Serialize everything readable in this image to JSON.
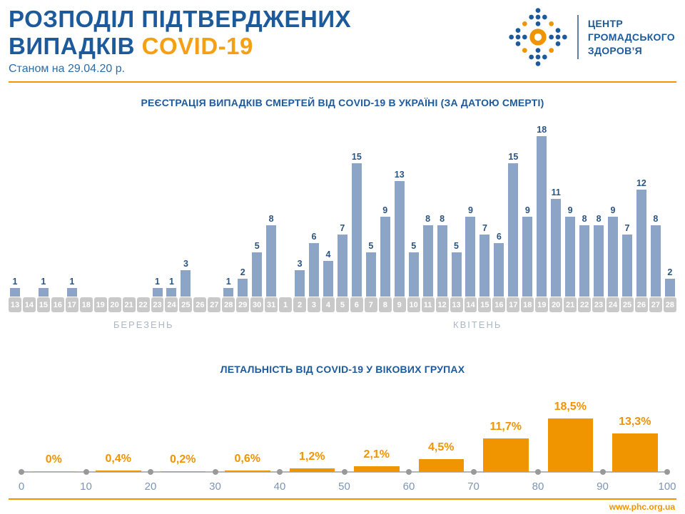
{
  "header": {
    "title_line1": "РОЗПОДІЛ ПІДТВЕРДЖЕНИХ",
    "title_line2": "ВИПАДКІВ",
    "title_accent": "COVID-19",
    "subtitle": "Станом на 29.04.20 р."
  },
  "logo": {
    "line1": "ЦЕНТР",
    "line2": "ГРОМАДСЬКОГО",
    "line3": "ЗДОРОВ’Я"
  },
  "footer": {
    "url": "www.phc.org.ua"
  },
  "colors": {
    "title_blue": "#1c5a9c",
    "accent_orange": "#f09400",
    "bar_blue": "#8ca4c5",
    "value_navy": "#2b5480",
    "date_strip_gray": "#c9c9c9",
    "month_label_gray": "#aab7c4",
    "axis_label_blue": "#7d95b3"
  },
  "chart_data": [
    {
      "type": "bar",
      "title": "РЕЄСТРАЦІЯ ВИПАДКІВ СМЕРТЕЙ ВІД COVID-19 В УКРАЇНІ (ЗА ДАТОЮ СМЕРТІ)",
      "ylim": [
        0,
        18
      ],
      "grid": false,
      "bar_color": "#8ca4c5",
      "months": [
        {
          "name": "БЕРЕЗЕНЬ",
          "days": [
            13,
            14,
            15,
            16,
            17,
            18,
            19,
            20,
            21,
            22,
            23,
            24,
            25,
            26,
            27,
            28,
            29,
            30,
            31
          ],
          "values": [
            1,
            0,
            1,
            0,
            1,
            0,
            0,
            0,
            0,
            0,
            1,
            1,
            3,
            0,
            0,
            1,
            2,
            5,
            8
          ]
        },
        {
          "name": "КВІТЕНЬ",
          "days": [
            1,
            2,
            3,
            4,
            5,
            6,
            7,
            8,
            9,
            10,
            11,
            12,
            13,
            14,
            15,
            16,
            17,
            18,
            19,
            20,
            21,
            22,
            23,
            24,
            25,
            26,
            27,
            28
          ],
          "values": [
            0,
            3,
            6,
            4,
            7,
            15,
            5,
            9,
            13,
            5,
            8,
            8,
            5,
            9,
            7,
            6,
            15,
            9,
            18,
            11,
            9,
            8,
            8,
            9,
            7,
            12,
            8,
            2
          ]
        }
      ]
    },
    {
      "type": "bar",
      "title": "ЛЕТАЛЬНІСТЬ ВІД COVID-19 У ВІКОВИХ ГРУПАХ",
      "xlim": [
        0,
        100
      ],
      "x_ticks": [
        "0",
        "10",
        "20",
        "30",
        "40",
        "50",
        "60",
        "70",
        "80",
        "90",
        "100"
      ],
      "bar_color": "#f09400",
      "bins": [
        {
          "range": "0-10",
          "label": "0%",
          "value": 0
        },
        {
          "range": "10-20",
          "label": "0,4%",
          "value": 0.4
        },
        {
          "range": "20-30",
          "label": "0,2%",
          "value": 0.2
        },
        {
          "range": "30-40",
          "label": "0,6%",
          "value": 0.6
        },
        {
          "range": "40-50",
          "label": "1,2%",
          "value": 1.2
        },
        {
          "range": "50-60",
          "label": "2,1%",
          "value": 2.1
        },
        {
          "range": "60-70",
          "label": "4,5%",
          "value": 4.5
        },
        {
          "range": "70-80",
          "label": "11,7%",
          "value": 11.7
        },
        {
          "range": "80-90",
          "label": "18,5%",
          "value": 18.5
        },
        {
          "range": "90-100",
          "label": "13,3%",
          "value": 13.3
        }
      ]
    }
  ]
}
